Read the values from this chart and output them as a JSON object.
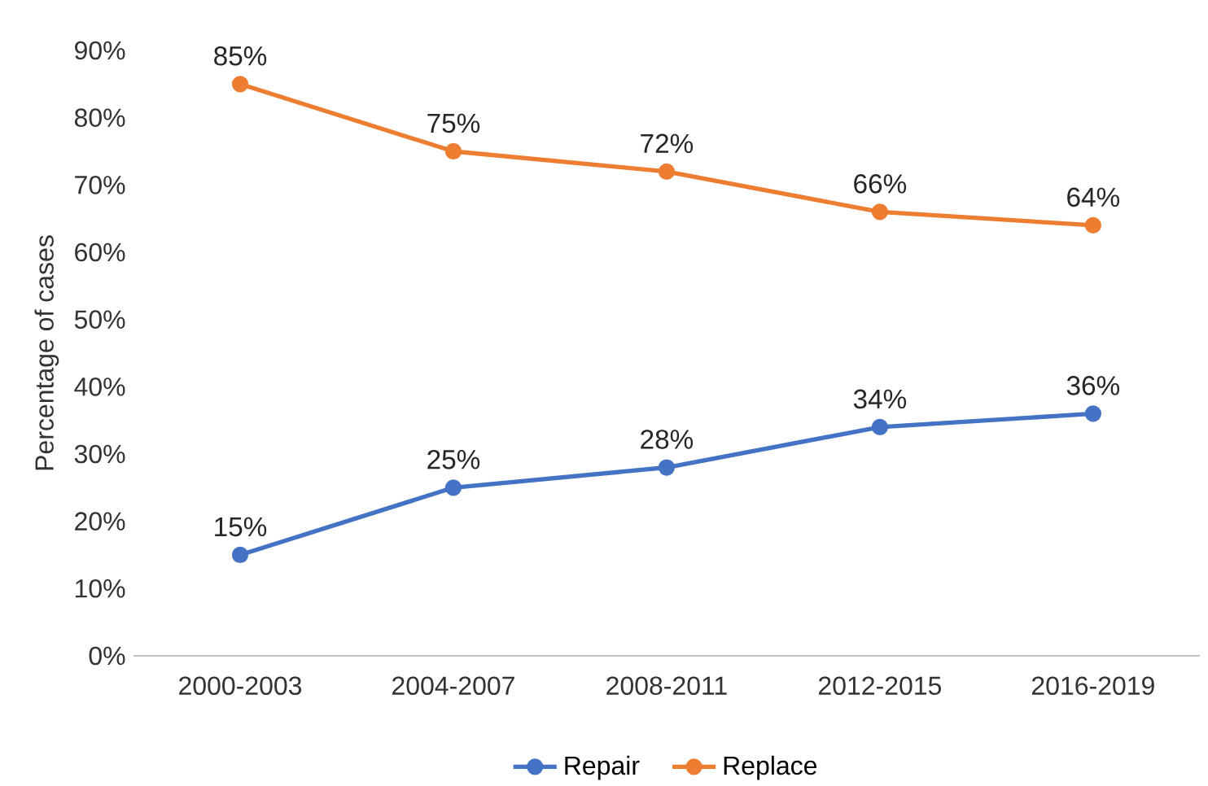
{
  "chart_data": {
    "type": "line",
    "ylabel": "Percentage of cases",
    "categories": [
      "2000-2003",
      "2004-2007",
      "2008-2011",
      "2012-2015",
      "2016-2019"
    ],
    "series": [
      {
        "name": "Repair",
        "color": "#4472c4",
        "values": [
          15,
          25,
          28,
          34,
          36
        ],
        "value_labels": [
          "15%",
          "25%",
          "28%",
          "34%",
          "36%"
        ]
      },
      {
        "name": "Replace",
        "color": "#ed7d31",
        "values": [
          85,
          75,
          72,
          66,
          64
        ],
        "value_labels": [
          "85%",
          "75%",
          "72%",
          "66%",
          "64%"
        ]
      }
    ],
    "ylim": [
      0,
      90
    ],
    "yticks": [
      {
        "value": 0,
        "label": "0%"
      },
      {
        "value": 10,
        "label": "10%"
      },
      {
        "value": 20,
        "label": "20%"
      },
      {
        "value": 30,
        "label": "30%"
      },
      {
        "value": 40,
        "label": "40%"
      },
      {
        "value": 50,
        "label": "50%"
      },
      {
        "value": 60,
        "label": "60%"
      },
      {
        "value": 70,
        "label": "70%"
      },
      {
        "value": 80,
        "label": "80%"
      },
      {
        "value": 90,
        "label": "90%"
      }
    ],
    "grid": false,
    "legend": "bottom",
    "marker": "circle",
    "line_style": "solid"
  }
}
